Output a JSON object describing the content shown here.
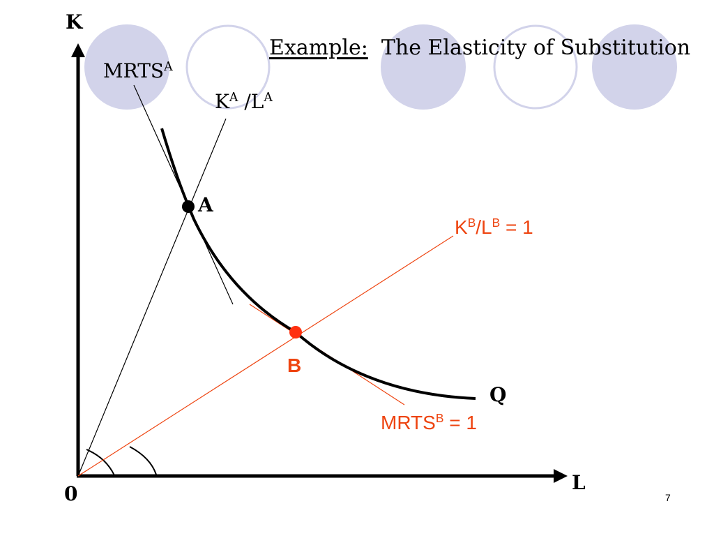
{
  "slide": {
    "title_prefix": "Example:",
    "title_text": "The Elasticity of Substitution",
    "page_number": "7"
  },
  "axes": {
    "y_label": "K",
    "x_label": "L",
    "origin_label": "0"
  },
  "points": {
    "a_label": "A",
    "b_label": "B"
  },
  "labels": {
    "isoquant": "Q",
    "mrts_a_main": "MRTS",
    "mrts_a_sup": "A",
    "ratio_a_k": "K",
    "ratio_a_k_sup": "A",
    "ratio_a_sep": " /L",
    "ratio_a_l_sup": "A",
    "ratio_b_k": "K",
    "ratio_b_k_sup": "B",
    "ratio_b_sep": "/L",
    "ratio_b_l_sup": "B",
    "ratio_b_tail": " = 1",
    "mrts_b_main": "MRTS",
    "mrts_b_sup": "B",
    "mrts_b_tail": " = 1"
  },
  "colors": {
    "accent_red": "#ee4410",
    "point_b": "#ff3010",
    "circle_fill": "#d2d3ea",
    "circle_stroke": "#d2d3ea",
    "ink": "#000000"
  }
}
